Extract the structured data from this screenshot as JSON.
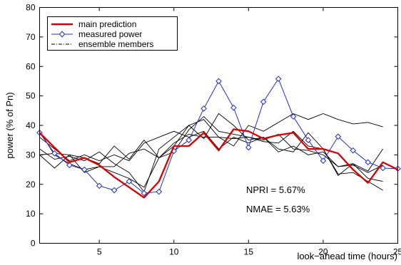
{
  "chart_data": {
    "type": "line",
    "xlabel": "look−ahead time (hours)",
    "ylabel": "power (% of Pn)",
    "xlim": [
      1,
      25
    ],
    "ylim": [
      0,
      80
    ],
    "xticks": [
      "5",
      "10",
      "15",
      "20",
      "25"
    ],
    "yticks": [
      "0",
      "10",
      "20",
      "30",
      "40",
      "50",
      "60",
      "70",
      "80"
    ],
    "legend_position": "top-left",
    "grid": false,
    "annotations": [
      "NPRI = 5.67%",
      "NMAE = 5.63%"
    ],
    "colors": {
      "main": "#dd0000",
      "measured": "#1f2fcf",
      "ensemble": "#000000"
    },
    "series": [
      {
        "name": "main prediction",
        "style": "thick-solid",
        "x": [
          1,
          2,
          3,
          4,
          5,
          6,
          7,
          8,
          9,
          10,
          11,
          12,
          13,
          14,
          15,
          16,
          17,
          18,
          19,
          20,
          21,
          22,
          23,
          24,
          25
        ],
        "values": [
          37.5,
          32.5,
          27.5,
          29,
          26.5,
          22.5,
          19,
          15.5,
          21,
          33,
          33,
          37.5,
          31.5,
          38.7,
          38,
          35.5,
          36.7,
          37.5,
          32,
          32,
          30.5,
          25,
          20.5,
          27.5,
          25
        ]
      },
      {
        "name": "measured power",
        "style": "diamond-markers",
        "x": [
          1,
          2,
          3,
          4,
          5,
          6,
          7,
          8,
          9,
          10,
          11,
          12,
          13,
          14,
          15,
          16,
          17,
          18,
          19,
          20,
          21,
          22,
          23,
          24,
          25
        ],
        "values": [
          37.5,
          30.5,
          26.5,
          25,
          19.5,
          18,
          21,
          17,
          17.5,
          31.3,
          35,
          45.7,
          55,
          46,
          32.5,
          48,
          55.8,
          43,
          35,
          28,
          36.2,
          31.5,
          27.5,
          25.5,
          25.3
        ]
      },
      {
        "name": "ensemble members",
        "style": "thin-solid",
        "members": [
          [
            38,
            30,
            27,
            25,
            26,
            24,
            22,
            19,
            29,
            33,
            40,
            42,
            36,
            33,
            40,
            38,
            41,
            44,
            42,
            44,
            42,
            40.5,
            41,
            39.5
          ],
          [
            30,
            25.5,
            30,
            29,
            27,
            33,
            28.5,
            35,
            29,
            31,
            38.5,
            43,
            38,
            37,
            36,
            34.5,
            34,
            38,
            33,
            32,
            23.5,
            24,
            21,
            18
          ],
          [
            32,
            28.5,
            29.5,
            28,
            31,
            27,
            24,
            17.5,
            32,
            36,
            40,
            35.5,
            44,
            40,
            35,
            36,
            32,
            31,
            37.5,
            32,
            23,
            27,
            24.5,
            32
          ],
          [
            30,
            30.5,
            30,
            24,
            26,
            26,
            30.5,
            32,
            29,
            34,
            37,
            36,
            36,
            35.5,
            36,
            35,
            37,
            32,
            31.5,
            30,
            26,
            26.5,
            24,
            26.5
          ],
          [
            36,
            32,
            28,
            30,
            28,
            30,
            28,
            34,
            36,
            38,
            36,
            38,
            32,
            36,
            34,
            36,
            31,
            33,
            30,
            31,
            26,
            27,
            22,
            21
          ]
        ]
      }
    ]
  }
}
